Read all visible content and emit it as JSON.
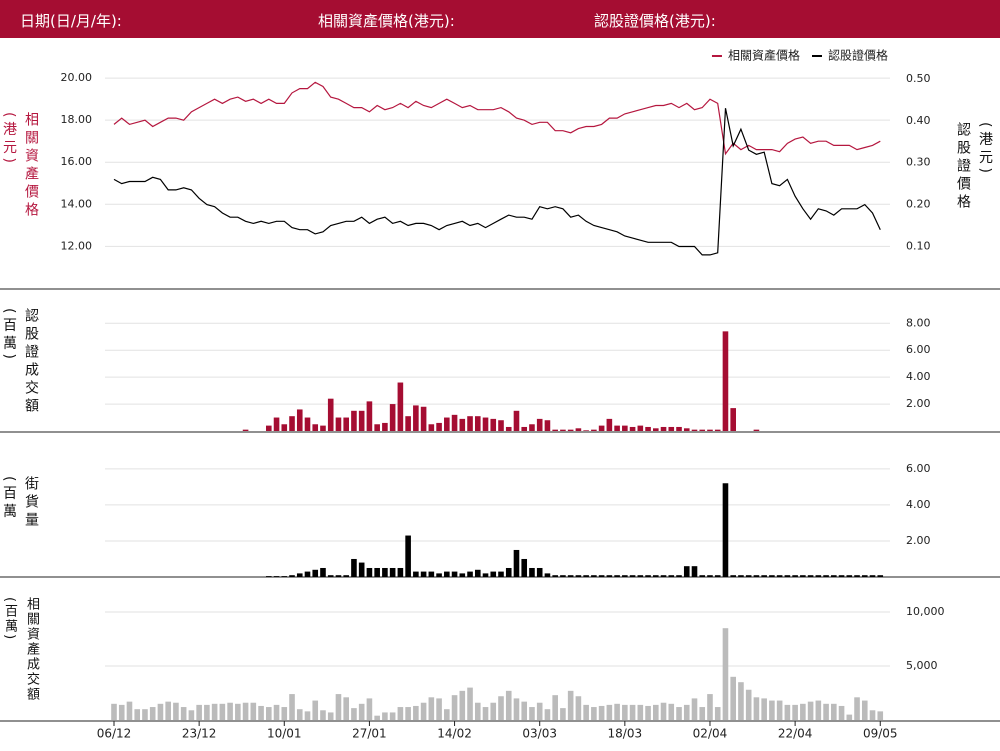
{
  "header": {
    "date_label": "日期(日/月/年):",
    "underlying_label": "相關資產價格(港元):",
    "warrant_label": "認股證價格(港元):"
  },
  "chart_data": [
    {
      "type": "line",
      "ylabel": "相關資產價格(港元)",
      "y2label": "認股證價格(港元)",
      "legend": "upper right",
      "grid": true,
      "ylim": [
        10.4,
        21.1
      ],
      "yticks": [
        {
          "value": 12,
          "label": "12.00"
        },
        {
          "value": 14,
          "label": "14.00"
        },
        {
          "value": 16,
          "label": "16.00"
        },
        {
          "value": 18,
          "label": "18.00"
        },
        {
          "value": 20,
          "label": "20.00"
        }
      ],
      "y2lim": [
        0.02,
        0.557
      ],
      "y2ticks": [
        {
          "value": 0.1,
          "label": "0.10"
        },
        {
          "value": 0.2,
          "label": "0.20"
        },
        {
          "value": 0.3,
          "label": "0.30"
        },
        {
          "value": 0.4,
          "label": "0.40"
        },
        {
          "value": 0.5,
          "label": "0.50"
        }
      ],
      "series": [
        {
          "name": "相關資產價格",
          "color": "#b5173f",
          "axis": "y",
          "values": [
            17.8,
            18.1,
            17.8,
            17.9,
            18.0,
            17.7,
            17.9,
            18.1,
            18.1,
            18.0,
            18.4,
            18.6,
            18.8,
            19.0,
            18.8,
            19.0,
            19.1,
            18.9,
            19.0,
            18.8,
            19.0,
            18.8,
            18.8,
            19.3,
            19.5,
            19.5,
            19.8,
            19.6,
            19.1,
            19.0,
            18.8,
            18.6,
            18.6,
            18.4,
            18.7,
            18.5,
            18.6,
            18.8,
            18.6,
            18.9,
            18.7,
            18.6,
            18.8,
            19.0,
            18.8,
            18.6,
            18.7,
            18.5,
            18.5,
            18.5,
            18.6,
            18.4,
            18.1,
            18.0,
            17.8,
            17.9,
            17.9,
            17.5,
            17.5,
            17.4,
            17.6,
            17.7,
            17.7,
            17.8,
            18.1,
            18.1,
            18.3,
            18.4,
            18.5,
            18.6,
            18.7,
            18.7,
            18.8,
            18.6,
            18.8,
            18.5,
            18.6,
            19.0,
            18.8,
            16.4,
            16.9,
            16.6,
            16.8,
            16.6,
            16.6,
            16.6,
            16.5,
            16.9,
            17.1,
            17.2,
            16.9,
            17.0,
            17.0,
            16.8,
            16.8,
            16.8,
            16.6,
            16.7,
            16.8,
            17.0
          ]
        },
        {
          "name": "認股證價格",
          "color": "#000000",
          "axis": "y2",
          "values": [
            0.26,
            0.25,
            0.255,
            0.255,
            0.255,
            0.265,
            0.26,
            0.235,
            0.235,
            0.24,
            0.235,
            0.215,
            0.2,
            0.195,
            0.18,
            0.17,
            0.17,
            0.16,
            0.155,
            0.16,
            0.155,
            0.16,
            0.16,
            0.145,
            0.14,
            0.14,
            0.13,
            0.135,
            0.15,
            0.155,
            0.16,
            0.16,
            0.17,
            0.155,
            0.165,
            0.17,
            0.155,
            0.16,
            0.15,
            0.155,
            0.155,
            0.15,
            0.14,
            0.15,
            0.155,
            0.16,
            0.15,
            0.155,
            0.145,
            0.155,
            0.165,
            0.175,
            0.17,
            0.17,
            0.165,
            0.195,
            0.19,
            0.195,
            0.19,
            0.17,
            0.175,
            0.16,
            0.15,
            0.145,
            0.14,
            0.135,
            0.125,
            0.12,
            0.115,
            0.11,
            0.11,
            0.11,
            0.11,
            0.1,
            0.1,
            0.1,
            0.08,
            0.08,
            0.085,
            0.43,
            0.34,
            0.38,
            0.33,
            0.32,
            0.325,
            0.25,
            0.245,
            0.26,
            0.22,
            0.19,
            0.165,
            0.19,
            0.185,
            0.175,
            0.19,
            0.19,
            0.19,
            0.2,
            0.18,
            0.14
          ]
        }
      ]
    },
    {
      "type": "bar",
      "ylabel": "認股證成交額(百萬)",
      "color": "#a50d32",
      "grid": true,
      "ylim": [
        0,
        10.1
      ],
      "yticks": [
        {
          "value": 2,
          "label": "2.00"
        },
        {
          "value": 4,
          "label": "4.00"
        },
        {
          "value": 6,
          "label": "6.00"
        },
        {
          "value": 8,
          "label": "8.00"
        }
      ],
      "values": [
        0,
        0,
        0,
        0,
        0,
        0,
        0,
        0,
        0,
        0,
        0,
        0,
        0,
        0,
        0,
        0,
        0,
        0.1,
        0,
        0,
        0.4,
        1.0,
        0.5,
        1.1,
        1.6,
        1.0,
        0.5,
        0.4,
        2.4,
        1.0,
        1.0,
        1.5,
        1.5,
        2.2,
        0.5,
        0.6,
        2.0,
        3.6,
        1.1,
        1.9,
        1.8,
        0.5,
        0.6,
        1.0,
        1.2,
        0.9,
        1.1,
        1.1,
        1.0,
        0.9,
        0.8,
        0.3,
        1.5,
        0.3,
        0.5,
        0.9,
        0.8,
        0.1,
        0.1,
        0.1,
        0.2,
        0.05,
        0.1,
        0.4,
        0.9,
        0.4,
        0.4,
        0.3,
        0.4,
        0.3,
        0.2,
        0.3,
        0.3,
        0.3,
        0.2,
        0.1,
        0.1,
        0.1,
        0.1,
        7.4,
        1.7,
        0,
        0,
        0.1,
        0,
        0,
        0,
        0,
        0,
        0,
        0,
        0,
        0,
        0,
        0,
        0,
        0,
        0,
        0,
        0
      ]
    },
    {
      "type": "bar",
      "ylabel": "街貨量(百萬份)",
      "color": "#000000",
      "grid": true,
      "ylim": [
        0,
        7.6
      ],
      "yticks": [
        {
          "value": 2,
          "label": "2.00"
        },
        {
          "value": 4,
          "label": "4.00"
        },
        {
          "value": 6,
          "label": "6.00"
        }
      ],
      "values": [
        0,
        0,
        0,
        0,
        0,
        0,
        0,
        0,
        0,
        0,
        0,
        0,
        0,
        0,
        0,
        0,
        0,
        0,
        0,
        0,
        0.05,
        0.05,
        0.05,
        0.1,
        0.2,
        0.3,
        0.4,
        0.5,
        0.1,
        0.1,
        0.1,
        1.0,
        0.8,
        0.5,
        0.5,
        0.5,
        0.5,
        0.5,
        2.3,
        0.3,
        0.3,
        0.3,
        0.2,
        0.3,
        0.3,
        0.2,
        0.3,
        0.4,
        0.2,
        0.3,
        0.3,
        0.5,
        1.5,
        1.0,
        0.5,
        0.5,
        0.2,
        0.1,
        0.1,
        0.1,
        0.1,
        0.1,
        0.1,
        0.1,
        0.1,
        0.1,
        0.1,
        0.1,
        0.1,
        0.1,
        0.1,
        0.1,
        0.1,
        0.1,
        0.6,
        0.6,
        0.1,
        0.1,
        0.1,
        5.2,
        0.1,
        0.1,
        0.1,
        0.1,
        0.1,
        0.1,
        0.1,
        0.1,
        0.1,
        0.1,
        0.1,
        0.1,
        0.1,
        0.1,
        0.1,
        0.1,
        0.1,
        0.1,
        0.1,
        0.1
      ]
    },
    {
      "type": "bar",
      "ylabel": "相關資產成交額(百萬)",
      "color": "#bbbbbb",
      "grid": true,
      "ylim": [
        0,
        12500
      ],
      "yticks": [
        {
          "value": 5000,
          "label": "5,000"
        },
        {
          "value": 10000,
          "label": "10,000"
        }
      ],
      "categories": [
        "06/12",
        null,
        null,
        null,
        null,
        null,
        null,
        null,
        null,
        null,
        null,
        "23/12",
        null,
        null,
        null,
        null,
        null,
        null,
        null,
        null,
        null,
        null,
        "10/01",
        null,
        null,
        null,
        null,
        null,
        null,
        null,
        null,
        null,
        null,
        "27/01",
        null,
        null,
        null,
        null,
        null,
        null,
        null,
        null,
        null,
        null,
        "14/02",
        null,
        null,
        null,
        null,
        null,
        null,
        null,
        null,
        null,
        null,
        "03/03",
        null,
        null,
        null,
        null,
        null,
        null,
        null,
        null,
        null,
        null,
        "18/03",
        null,
        null,
        null,
        null,
        null,
        null,
        null,
        null,
        null,
        null,
        "02/04",
        null,
        null,
        null,
        null,
        null,
        null,
        null,
        null,
        null,
        null,
        "22/04",
        null,
        null,
        null,
        null,
        null,
        null,
        null,
        null,
        null,
        null,
        "09/05"
      ],
      "values": [
        1500,
        1400,
        1700,
        1000,
        1000,
        1200,
        1500,
        1700,
        1600,
        1200,
        900,
        1400,
        1400,
        1500,
        1500,
        1600,
        1500,
        1600,
        1600,
        1300,
        1200,
        1400,
        1200,
        2400,
        1000,
        800,
        1800,
        900,
        700,
        2400,
        2100,
        1100,
        1500,
        2000,
        400,
        700,
        700,
        1200,
        1200,
        1300,
        1600,
        2100,
        2000,
        1000,
        2300,
        2700,
        3000,
        1600,
        1200,
        1600,
        2200,
        2700,
        2000,
        1700,
        1200,
        1600,
        1000,
        2300,
        1100,
        2700,
        2200,
        1400,
        1200,
        1300,
        1400,
        1500,
        1400,
        1400,
        1400,
        1300,
        1400,
        1600,
        1500,
        1200,
        1400,
        2000,
        1200,
        2400,
        1200,
        8500,
        4000,
        3500,
        2800,
        2100,
        2000,
        1800,
        1800,
        1400,
        1400,
        1500,
        1700,
        1800,
        1500,
        1500,
        1300,
        500,
        2100,
        1800,
        900,
        800
      ]
    }
  ]
}
